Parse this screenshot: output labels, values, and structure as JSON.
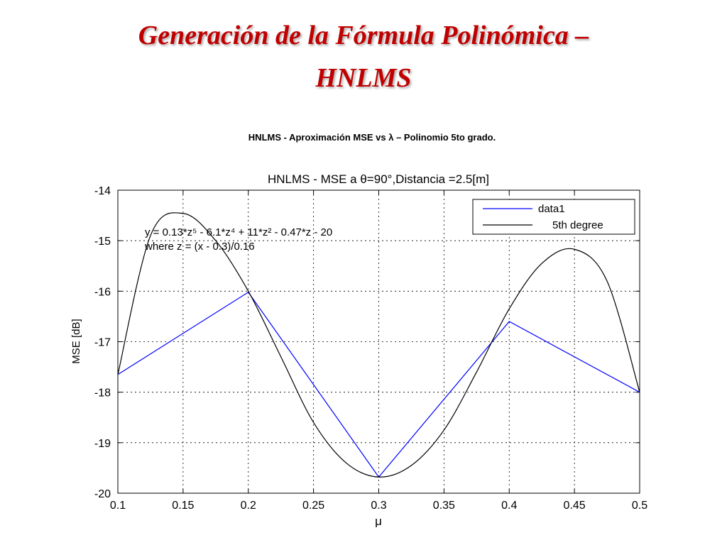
{
  "slide": {
    "title_line1": "Generación de la Fórmula Polinómica –",
    "title_line2": "HNLMS",
    "caption": "HNLMS - Aproximación MSE vs λ – Polinomio 5to grado."
  },
  "chart_data": {
    "type": "line",
    "title": "HNLMS - MSE a θ=90°,Distancia =2.5[m]",
    "xlabel": "μ",
    "ylabel": "MSE [dB]",
    "xlim": [
      0.1,
      0.5
    ],
    "ylim": [
      -20,
      -14
    ],
    "xticks": [
      "0.1",
      "0.15",
      "0.2",
      "0.25",
      "0.3",
      "0.35",
      "0.4",
      "0.45",
      "0.5"
    ],
    "yticks": [
      "-14",
      "-15",
      "-16",
      "-17",
      "-18",
      "-19",
      "-20"
    ],
    "grid": true,
    "legend_position": "top-right",
    "annotation": {
      "line1": "y = 0.13*z⁵ - 6.1*z⁴ + 11*z² - 0.47*z - 20",
      "line2": "where z = (x - 0.3)/0.16"
    },
    "series": [
      {
        "name": "data1",
        "color": "#0000ff",
        "x": [
          0.1,
          0.2,
          0.3,
          0.4,
          0.5
        ],
        "y": [
          -17.65,
          -16.02,
          -19.68,
          -16.6,
          -18.0
        ]
      },
      {
        "name": "5th degree",
        "color": "#000000",
        "x": [
          0.1,
          0.125,
          0.15,
          0.175,
          0.2,
          0.225,
          0.25,
          0.275,
          0.3,
          0.325,
          0.35,
          0.375,
          0.4,
          0.425,
          0.45,
          0.475,
          0.5
        ],
        "y": [
          -17.65,
          -14.9,
          -14.46,
          -15.0,
          -16.0,
          -17.3,
          -18.6,
          -19.4,
          -19.68,
          -19.45,
          -18.75,
          -17.6,
          -16.35,
          -15.45,
          -15.17,
          -15.8,
          -18.0
        ]
      }
    ]
  }
}
